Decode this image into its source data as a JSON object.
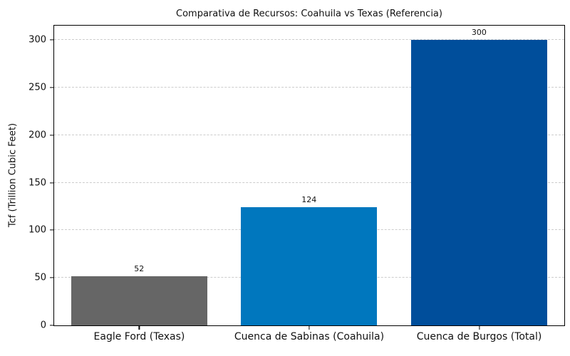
{
  "chart_data": {
    "type": "bar",
    "title": "Comparativa de Recursos: Coahuila vs Texas (Referencia)",
    "xlabel": "",
    "ylabel": "Tcf (Trillion Cubic Feet)",
    "categories": [
      "Eagle Ford (Texas)",
      "Cuenca de Sabinas (Coahuila)",
      "Cuenca de Burgos (Total)"
    ],
    "values": [
      52,
      124,
      300
    ],
    "value_labels": [
      "52",
      "124",
      "300"
    ],
    "bar_colors": [
      "#666666",
      "#0077BE",
      "#004E9B"
    ],
    "ylim": [
      0,
      315
    ],
    "yticks": [
      0,
      50,
      100,
      150,
      200,
      250,
      300
    ],
    "grid": "horizontal-dashed",
    "grid_color": "#cccccc",
    "background_color": "#ffffff",
    "legend": "none"
  }
}
